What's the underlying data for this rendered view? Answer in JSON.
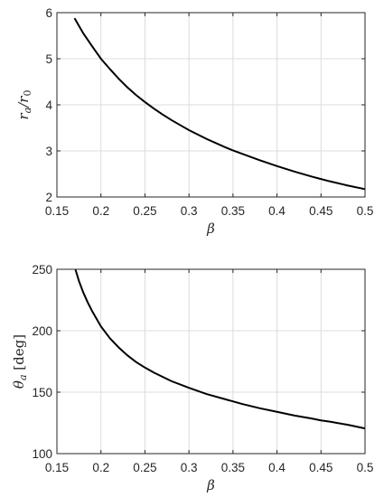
{
  "chart_data": [
    {
      "type": "line",
      "xlabel": "β",
      "ylabel": {
        "main": "r",
        "sub1": "a",
        "sep": "/r",
        "sub2": "0"
      },
      "xlim": [
        0.15,
        0.5
      ],
      "ylim": [
        2,
        6
      ],
      "grid": true,
      "x_ticks": [
        "0.15",
        "0.2",
        "0.25",
        "0.3",
        "0.35",
        "0.4",
        "0.45",
        "0.5"
      ],
      "y_ticks": [
        "2",
        "3",
        "4",
        "5",
        "6"
      ],
      "series": [
        {
          "x": [
            0.17,
            0.18,
            0.19,
            0.2,
            0.21,
            0.22,
            0.23,
            0.24,
            0.25,
            0.26,
            0.27,
            0.28,
            0.29,
            0.3,
            0.32,
            0.34,
            0.35,
            0.36,
            0.38,
            0.4,
            0.42,
            0.44,
            0.45,
            0.46,
            0.48,
            0.5
          ],
          "y": [
            5.88,
            5.55,
            5.27,
            5.0,
            4.78,
            4.57,
            4.38,
            4.21,
            4.06,
            3.92,
            3.79,
            3.67,
            3.56,
            3.45,
            3.26,
            3.09,
            3.01,
            2.94,
            2.8,
            2.67,
            2.55,
            2.44,
            2.39,
            2.34,
            2.25,
            2.17
          ]
        }
      ]
    },
    {
      "type": "line",
      "xlabel": "β",
      "ylabel": {
        "main": "θ",
        "sub1": "a",
        "unit": "[deg]"
      },
      "xlim": [
        0.15,
        0.5
      ],
      "ylim": [
        100,
        250
      ],
      "grid": true,
      "x_ticks": [
        "0.15",
        "0.2",
        "0.25",
        "0.3",
        "0.35",
        "0.4",
        "0.45",
        "0.5"
      ],
      "y_ticks": [
        "100",
        "150",
        "200",
        "250"
      ],
      "series": [
        {
          "x": [
            0.171,
            0.175,
            0.18,
            0.185,
            0.19,
            0.2,
            0.21,
            0.22,
            0.23,
            0.24,
            0.25,
            0.26,
            0.27,
            0.28,
            0.3,
            0.32,
            0.34,
            0.35,
            0.36,
            0.38,
            0.4,
            0.42,
            0.44,
            0.45,
            0.46,
            0.48,
            0.5
          ],
          "y": [
            250,
            240.5,
            231,
            223,
            216,
            203.5,
            194,
            186.5,
            180,
            174.5,
            170,
            166,
            162.5,
            159,
            153.5,
            148.5,
            144.5,
            142.5,
            140.5,
            137,
            134,
            131,
            128.5,
            127,
            126,
            123.5,
            120.5
          ]
        }
      ]
    }
  ]
}
